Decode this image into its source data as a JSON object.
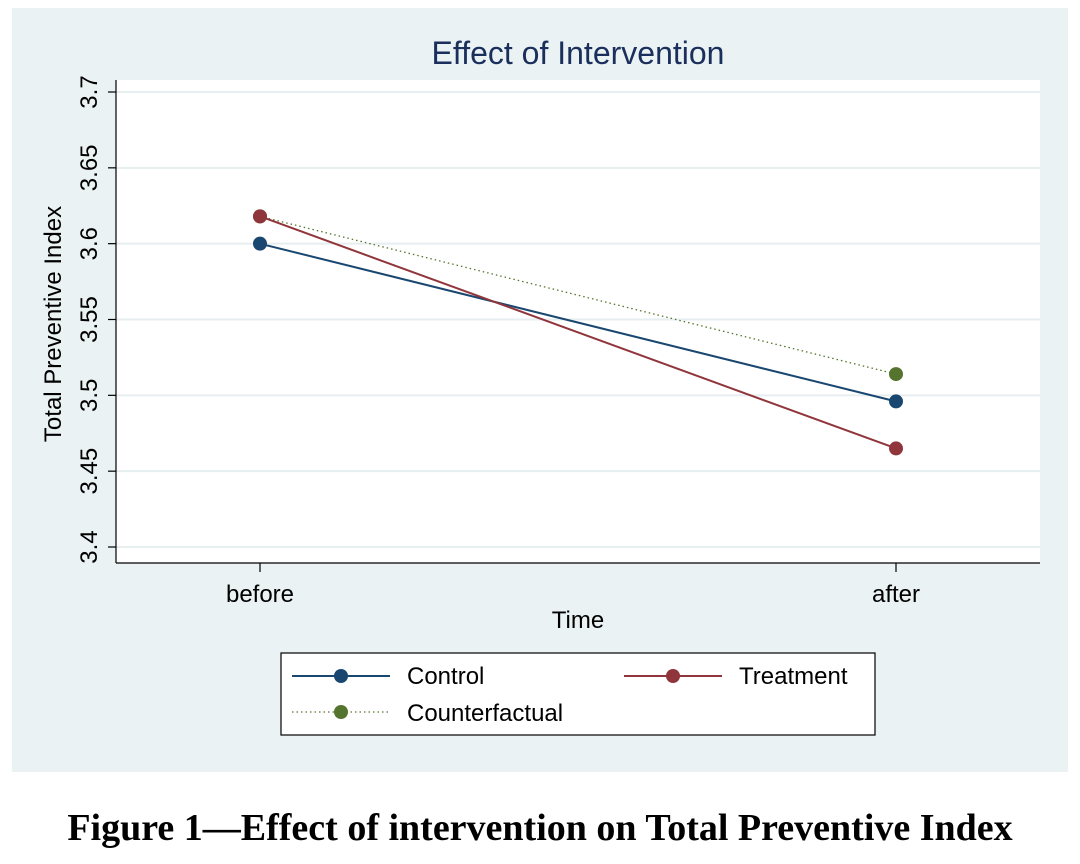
{
  "caption": "Figure 1—Effect of intervention on Total Preventive Index",
  "colors": {
    "panel_bg": "#eaf2f3",
    "plot_bg": "#ffffff",
    "title": "#1a2f5c",
    "Control": "#1a476f",
    "Treatment": "#90353b",
    "Counterfactual": "#55752f",
    "grid": "#e6eef0"
  },
  "chart_data": {
    "type": "line",
    "title": "Effect of Intervention",
    "xlabel": "Time",
    "ylabel": "Total Preventive Index",
    "categories": [
      "before",
      "after"
    ],
    "ylim": [
      3.4,
      3.7
    ],
    "yticks": [
      "3.4",
      "3.45",
      "3.5",
      "3.55",
      "3.6",
      "3.65",
      "3.7"
    ],
    "grid": true,
    "legend_position": "bottom",
    "series": [
      {
        "name": "Control",
        "values": [
          3.6,
          3.496
        ],
        "line_style": "solid",
        "marker": "circle"
      },
      {
        "name": "Treatment",
        "values": [
          3.618,
          3.465
        ],
        "line_style": "solid",
        "marker": "circle"
      },
      {
        "name": "Counterfactual",
        "values": [
          3.618,
          3.514
        ],
        "line_style": "dotted",
        "marker": "circle"
      }
    ]
  }
}
